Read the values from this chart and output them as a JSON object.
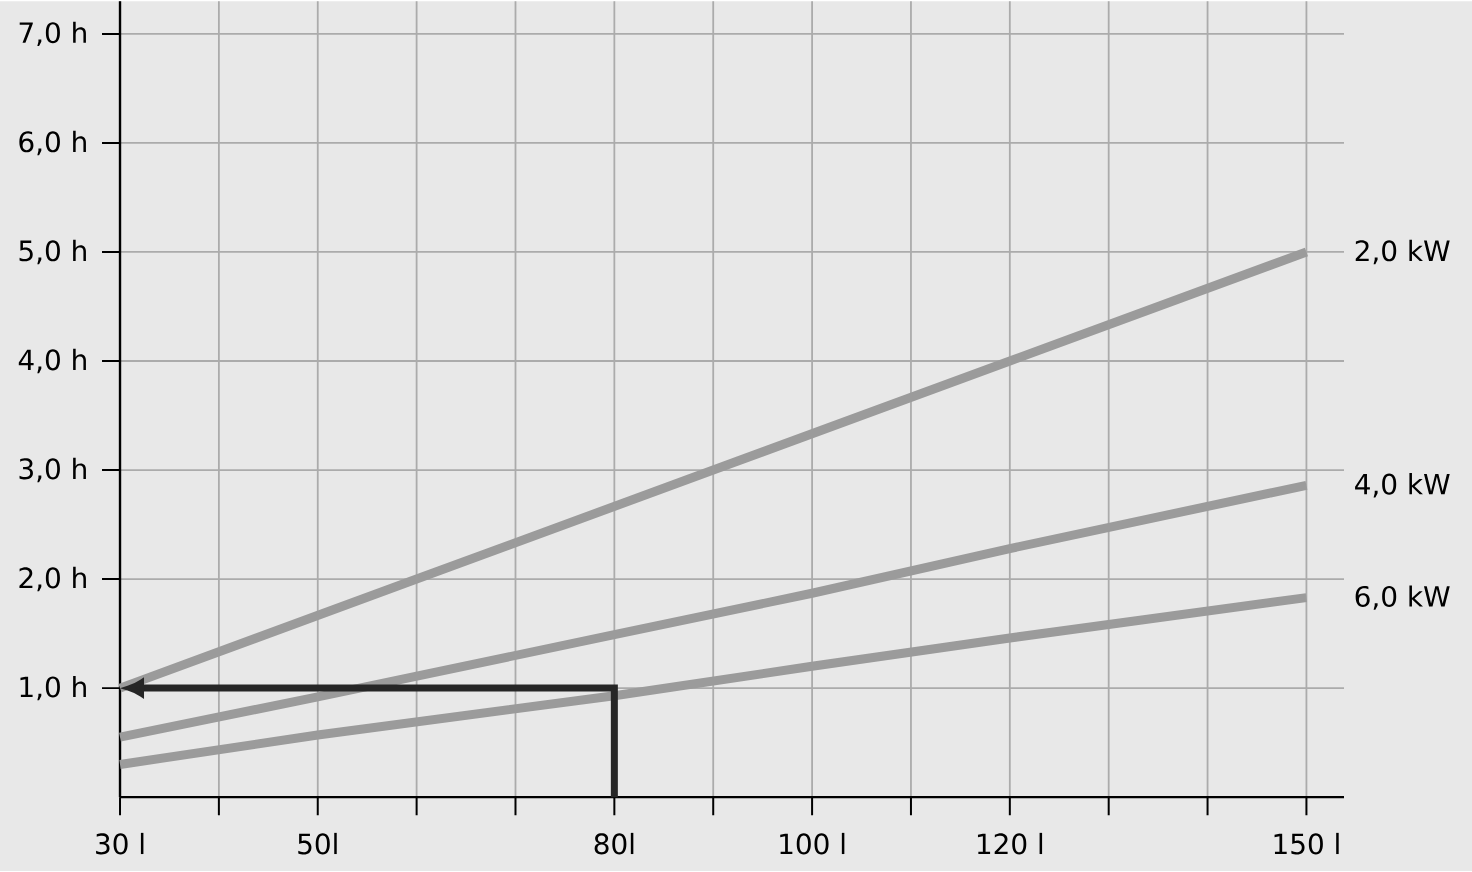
{
  "chart_data": {
    "type": "line",
    "xlim": [
      30,
      153.8
    ],
    "ylim": [
      0,
      7.3
    ],
    "xticks": [
      {
        "value": 30,
        "label": "30 l"
      },
      {
        "value": 40,
        "label": null
      },
      {
        "value": 50,
        "label": "50l"
      },
      {
        "value": 60,
        "label": null
      },
      {
        "value": 70,
        "label": null
      },
      {
        "value": 80,
        "label": "80l"
      },
      {
        "value": 90,
        "label": null
      },
      {
        "value": 100,
        "label": "100 l"
      },
      {
        "value": 110,
        "label": null
      },
      {
        "value": 120,
        "label": "120 l"
      },
      {
        "value": 130,
        "label": null
      },
      {
        "value": 140,
        "label": null
      },
      {
        "value": 150,
        "label": "150 l"
      }
    ],
    "yticks": [
      {
        "value": 1,
        "label": "1,0 h"
      },
      {
        "value": 2,
        "label": "2,0 h"
      },
      {
        "value": 3,
        "label": "3,0 h"
      },
      {
        "value": 4,
        "label": "4,0 h"
      },
      {
        "value": 5,
        "label": "5,0 h"
      },
      {
        "value": 6,
        "label": "6,0 h"
      },
      {
        "value": 7,
        "label": "7,0 h"
      }
    ],
    "grid": true,
    "series": [
      {
        "name": "2,0 kW",
        "color": "#9b9b9b",
        "x": [
          30,
          60,
          90,
          120,
          150
        ],
        "values": [
          1.0,
          2.0,
          3.0,
          4.0,
          5.0
        ]
      },
      {
        "name": "4,0 kW",
        "color": "#9b9b9b",
        "x": [
          30,
          50,
          80,
          100,
          120,
          150
        ],
        "values": [
          0.55,
          0.92,
          1.49,
          1.87,
          2.28,
          2.86
        ]
      },
      {
        "name": "6,0 kW",
        "color": "#9b9b9b",
        "x": [
          30,
          50,
          80,
          100,
          120,
          150
        ],
        "values": [
          0.3,
          0.57,
          0.93,
          1.2,
          1.46,
          1.83
        ]
      }
    ]
  }
}
